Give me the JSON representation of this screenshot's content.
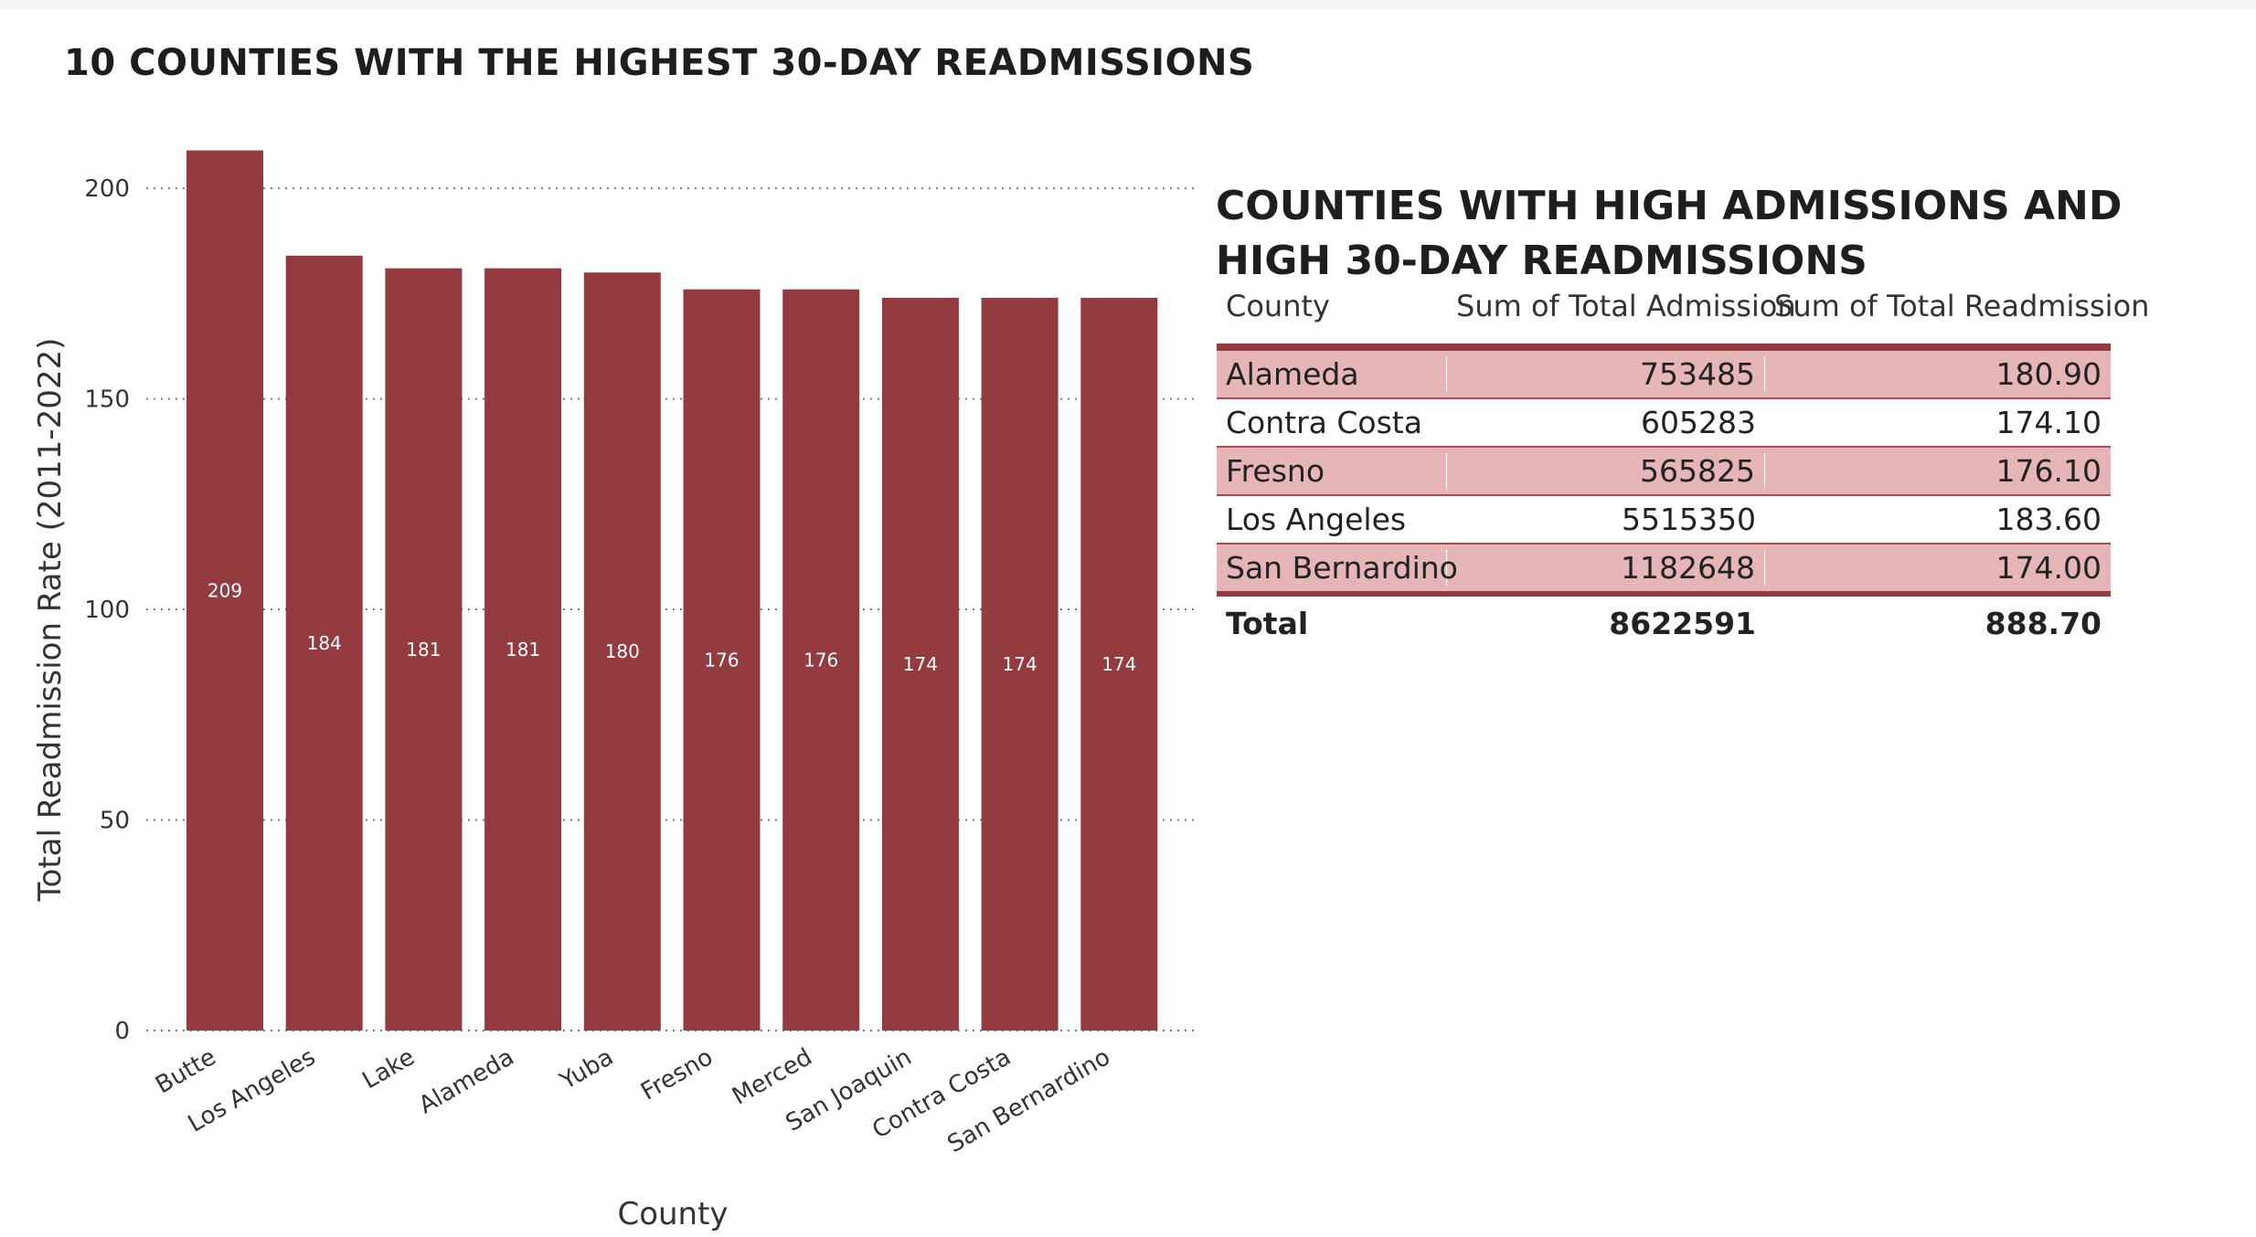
{
  "chart_data": [
    {
      "type": "bar",
      "title": "10 COUNTIES WITH THE HIGHEST 30-DAY READMISSIONS",
      "xlabel": "County",
      "ylabel": "Total Readmission Rate (2011-2022)",
      "categories": [
        "Butte",
        "Los Angeles",
        "Lake",
        "Alameda",
        "Yuba",
        "Fresno",
        "Merced",
        "San Joaquin",
        "Contra Costa",
        "San Bernardino"
      ],
      "values": [
        209,
        184,
        181,
        181,
        180,
        176,
        176,
        174,
        174,
        174
      ],
      "data_labels": [
        "209",
        "184",
        "181",
        "181",
        "180",
        "176",
        "176",
        "174",
        "174",
        "174"
      ],
      "ylim": [
        0,
        210
      ],
      "yticks": [
        0,
        50,
        100,
        150,
        200
      ],
      "grid": "horizontal dotted",
      "bar_color": "#943b3f"
    },
    {
      "type": "table",
      "title": "COUNTIES WITH HIGH ADMISSIONS AND HIGH 30-DAY READMISSIONS",
      "columns": [
        "County",
        "Sum of Total Admission",
        "Sum of Total Readmission"
      ],
      "rows": [
        [
          "Alameda",
          "753485",
          "180.90"
        ],
        [
          "Contra Costa",
          "605283",
          "174.10"
        ],
        [
          "Fresno",
          "565825",
          "176.10"
        ],
        [
          "Los Angeles",
          "5515350",
          "183.60"
        ],
        [
          "San Bernardino",
          "1182648",
          "174.00"
        ]
      ],
      "total": [
        "Total",
        "8622591",
        "888.70"
      ],
      "band_color": "#e6b5b8",
      "rule_color": "#943b3f"
    }
  ]
}
